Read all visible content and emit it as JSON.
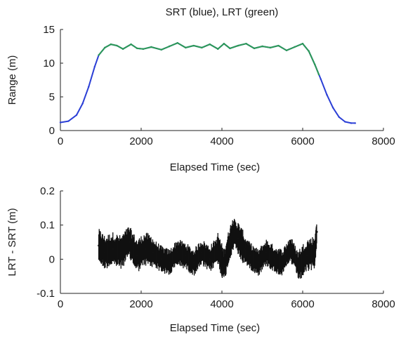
{
  "chart_data": [
    {
      "type": "line",
      "title": "SRT (blue), LRT (green)",
      "xlabel": "Elapsed Time (sec)",
      "ylabel": "Range (m)",
      "xlim": [
        0,
        8000
      ],
      "ylim": [
        0,
        15
      ],
      "xticks": [
        0,
        2000,
        4000,
        6000,
        8000
      ],
      "yticks": [
        0,
        5,
        10,
        15
      ],
      "xtick_labels": [
        "0",
        "2000",
        "4000",
        "6000",
        "8000"
      ],
      "ytick_labels": [
        "0",
        "5",
        "10",
        "15"
      ],
      "grid": false,
      "colors": {
        "SRT": "#2b3fd6",
        "LRT": "#2c9a55"
      },
      "series": [
        {
          "key": "SRT",
          "color": "#2b3fd6",
          "x": [
            0,
            200,
            400,
            550,
            700,
            850,
            950,
            1100,
            1250,
            1400,
            1550,
            1750,
            1900,
            2050,
            2250,
            2500,
            2700,
            2900,
            3100,
            3300,
            3500,
            3700,
            3900,
            4050,
            4200,
            4400,
            4600,
            4800,
            5000,
            5200,
            5400,
            5600,
            5800,
            6000,
            6150,
            6300,
            6450,
            6600,
            6750,
            6900,
            7050,
            7200,
            7300
          ],
          "y": [
            1.2,
            1.4,
            2.3,
            4.0,
            6.5,
            9.5,
            11.2,
            12.3,
            12.8,
            12.6,
            12.1,
            12.8,
            12.2,
            12.1,
            12.4,
            12.0,
            12.5,
            13.0,
            12.3,
            12.6,
            12.3,
            12.8,
            12.1,
            12.9,
            12.2,
            12.6,
            12.9,
            12.2,
            12.5,
            12.3,
            12.6,
            11.9,
            12.4,
            12.9,
            11.8,
            9.8,
            7.6,
            5.3,
            3.4,
            2.0,
            1.3,
            1.1,
            1.1
          ]
        },
        {
          "key": "LRT",
          "color": "#2c9a55",
          "x": [
            950,
            1100,
            1250,
            1400,
            1550,
            1750,
            1900,
            2050,
            2250,
            2500,
            2700,
            2900,
            3100,
            3300,
            3500,
            3700,
            3900,
            4050,
            4200,
            4400,
            4600,
            4800,
            5000,
            5200,
            5400,
            5600,
            5800,
            6000,
            6150,
            6300,
            6400
          ],
          "y": [
            11.2,
            12.3,
            12.8,
            12.6,
            12.1,
            12.8,
            12.2,
            12.1,
            12.4,
            12.0,
            12.5,
            13.0,
            12.3,
            12.6,
            12.3,
            12.8,
            12.1,
            12.9,
            12.2,
            12.6,
            12.9,
            12.2,
            12.5,
            12.3,
            12.6,
            11.9,
            12.4,
            12.9,
            11.8,
            9.8,
            8.3
          ]
        }
      ]
    },
    {
      "type": "scatter",
      "title": "",
      "xlabel": "Elapsed Time (sec)",
      "ylabel": "LRT - SRT (m)",
      "xlim": [
        0,
        8000
      ],
      "ylim": [
        -0.1,
        0.2
      ],
      "xticks": [
        0,
        2000,
        4000,
        6000,
        8000
      ],
      "yticks": [
        -0.1,
        0,
        0.1,
        0.2
      ],
      "xtick_labels": [
        "0",
        "2000",
        "4000",
        "6000",
        "8000"
      ],
      "ytick_labels": [
        "-0.1",
        "0",
        "0.1",
        "0.2"
      ],
      "grid": false,
      "colors": {
        "points": "#111111"
      },
      "series": [
        {
          "key": "difference",
          "color": "#111111",
          "x": [
            950,
            1100,
            1300,
            1500,
            1700,
            1900,
            2100,
            2300,
            2500,
            2700,
            2900,
            3100,
            3300,
            3500,
            3700,
            3900,
            4050,
            4200,
            4300,
            4400,
            4550,
            4700,
            4900,
            5100,
            5300,
            5500,
            5700,
            5900,
            6100,
            6300,
            6350
          ],
          "y": [
            0.04,
            0.02,
            0.03,
            0.02,
            0.05,
            0.01,
            0.03,
            0.02,
            0.0,
            -0.01,
            0.02,
            0.01,
            -0.01,
            0.02,
            0.0,
            0.03,
            -0.02,
            0.05,
            0.08,
            0.06,
            0.03,
            0.01,
            -0.01,
            0.02,
            0.0,
            -0.01,
            0.03,
            -0.02,
            0.01,
            0.02,
            0.08
          ],
          "spread": [
            0.05,
            0.05,
            0.05,
            0.05,
            0.05,
            0.05,
            0.05,
            0.04,
            0.04,
            0.04,
            0.04,
            0.04,
            0.04,
            0.04,
            0.04,
            0.05,
            0.05,
            0.05,
            0.04,
            0.05,
            0.04,
            0.04,
            0.04,
            0.04,
            0.04,
            0.04,
            0.04,
            0.05,
            0.05,
            0.04,
            0.03
          ]
        }
      ]
    }
  ]
}
